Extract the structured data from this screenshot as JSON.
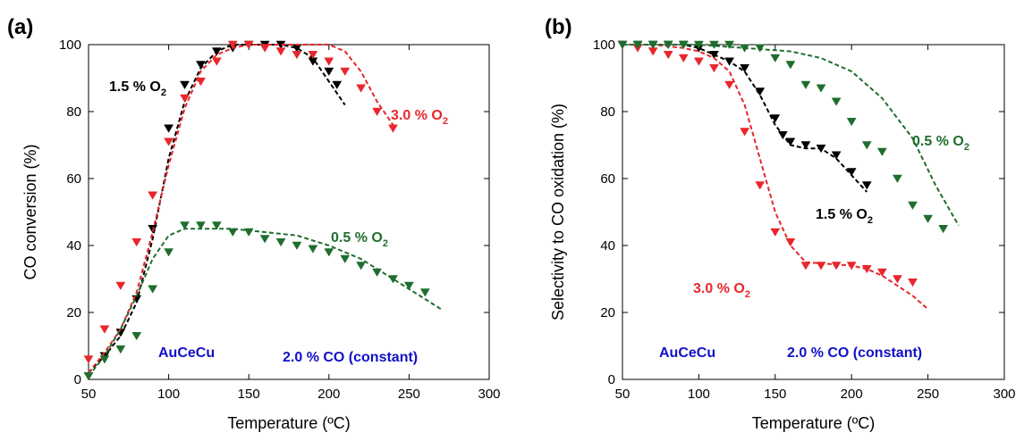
{
  "chart_data": [
    {
      "panel": "(a)",
      "type": "scatter",
      "xlabel": "Temperature (ºC)",
      "ylabel": "CO conversion (%)",
      "xlim": [
        50,
        300
      ],
      "ylim": [
        0,
        100
      ],
      "xticks": [
        "50",
        "100",
        "150",
        "200",
        "250",
        "300"
      ],
      "yticks": [
        "0",
        "20",
        "40",
        "60",
        "80",
        "100"
      ],
      "grid": false,
      "annotations": [
        {
          "text": "1.5 % O",
          "sub": "2",
          "color": "#000000"
        },
        {
          "text": "3.0 % O",
          "sub": "2",
          "color": "#e8262b"
        },
        {
          "text": "0.5 % O",
          "sub": "2",
          "color": "#1f6e2f"
        },
        {
          "text": "AuCeCu",
          "color": "#1010c8"
        },
        {
          "text": "2.0 % CO (constant)",
          "color": "#1010c8"
        }
      ],
      "series": [
        {
          "color": "#000000",
          "points": [
            [
              50,
              1
            ],
            [
              60,
              7
            ],
            [
              70,
              14
            ],
            [
              80,
              24
            ],
            [
              90,
              45
            ],
            [
              100,
              75
            ],
            [
              110,
              88
            ],
            [
              120,
              94
            ],
            [
              130,
              98
            ],
            [
              140,
              99
            ],
            [
              150,
              100
            ],
            [
              160,
              100
            ],
            [
              170,
              100
            ],
            [
              180,
              99
            ],
            [
              190,
              95
            ],
            [
              200,
              92
            ],
            [
              205,
              88
            ]
          ],
          "fit": [
            [
              50,
              2
            ],
            [
              60,
              7
            ],
            [
              70,
              13
            ],
            [
              80,
              23
            ],
            [
              90,
              42
            ],
            [
              100,
              66
            ],
            [
              110,
              83
            ],
            [
              120,
              93
            ],
            [
              130,
              98
            ],
            [
              140,
              100
            ],
            [
              150,
              100
            ],
            [
              160,
              100
            ],
            [
              170,
              100
            ],
            [
              180,
              99
            ],
            [
              190,
              96
            ],
            [
              200,
              89
            ],
            [
              210,
              82
            ]
          ]
        },
        {
          "color": "#e8262b",
          "points": [
            [
              50,
              6
            ],
            [
              60,
              15
            ],
            [
              70,
              28
            ],
            [
              80,
              41
            ],
            [
              90,
              55
            ],
            [
              100,
              71
            ],
            [
              110,
              84
            ],
            [
              120,
              89
            ],
            [
              130,
              95
            ],
            [
              140,
              100
            ],
            [
              150,
              100
            ],
            [
              160,
              99
            ],
            [
              170,
              98
            ],
            [
              180,
              97
            ],
            [
              190,
              97
            ],
            [
              200,
              95
            ],
            [
              210,
              92
            ],
            [
              220,
              87
            ],
            [
              230,
              80
            ],
            [
              240,
              75
            ]
          ],
          "fit": [
            [
              50,
              2
            ],
            [
              60,
              8
            ],
            [
              70,
              15
            ],
            [
              80,
              26
            ],
            [
              90,
              44
            ],
            [
              100,
              64
            ],
            [
              110,
              81
            ],
            [
              120,
              92
            ],
            [
              130,
              97
            ],
            [
              140,
              99
            ],
            [
              150,
              100
            ],
            [
              170,
              100
            ],
            [
              190,
              100
            ],
            [
              200,
              100
            ],
            [
              210,
              98
            ],
            [
              220,
              92
            ],
            [
              230,
              83
            ],
            [
              240,
              76
            ]
          ]
        },
        {
          "color": "#1f6e2f",
          "points": [
            [
              50,
              1
            ],
            [
              60,
              6
            ],
            [
              70,
              9
            ],
            [
              80,
              13
            ],
            [
              90,
              27
            ],
            [
              100,
              38
            ],
            [
              110,
              46
            ],
            [
              120,
              46
            ],
            [
              130,
              46
            ],
            [
              140,
              44
            ],
            [
              150,
              44
            ],
            [
              160,
              42
            ],
            [
              170,
              41
            ],
            [
              180,
              40
            ],
            [
              190,
              39
            ],
            [
              200,
              38
            ],
            [
              210,
              36
            ],
            [
              220,
              34
            ],
            [
              230,
              32
            ],
            [
              240,
              30
            ],
            [
              250,
              28
            ],
            [
              260,
              26
            ]
          ],
          "fit": [
            [
              50,
              1
            ],
            [
              60,
              7
            ],
            [
              70,
              15
            ],
            [
              80,
              25
            ],
            [
              90,
              36
            ],
            [
              100,
              43
            ],
            [
              110,
              45
            ],
            [
              120,
              45
            ],
            [
              140,
              45
            ],
            [
              160,
              44
            ],
            [
              180,
              43
            ],
            [
              200,
              40
            ],
            [
              220,
              36
            ],
            [
              240,
              30
            ],
            [
              260,
              24
            ],
            [
              270,
              21
            ]
          ]
        }
      ]
    },
    {
      "panel": "(b)",
      "type": "scatter",
      "xlabel": "Temperature (ºC)",
      "ylabel": "Selectivity to CO oxidation (%)",
      "xlim": [
        50,
        300
      ],
      "ylim": [
        0,
        100
      ],
      "xticks": [
        "50",
        "100",
        "150",
        "200",
        "250",
        "300"
      ],
      "yticks": [
        "0",
        "20",
        "40",
        "60",
        "80",
        "100"
      ],
      "grid": false,
      "annotations": [
        {
          "text": "0.5 % O",
          "sub": "2",
          "color": "#1f6e2f"
        },
        {
          "text": "1.5 % O",
          "sub": "2",
          "color": "#000000"
        },
        {
          "text": "3.0 % O",
          "sub": "2",
          "color": "#e8262b"
        },
        {
          "text": "AuCeCu",
          "color": "#1010c8"
        },
        {
          "text": "2.0 % CO (constant)",
          "color": "#1010c8"
        }
      ],
      "series": [
        {
          "color": "#000000",
          "points": [
            [
              50,
              100
            ],
            [
              60,
              100
            ],
            [
              70,
              100
            ],
            [
              80,
              100
            ],
            [
              90,
              100
            ],
            [
              100,
              99
            ],
            [
              110,
              97
            ],
            [
              120,
              95
            ],
            [
              130,
              93
            ],
            [
              140,
              86
            ],
            [
              150,
              78
            ],
            [
              155,
              73
            ],
            [
              160,
              71
            ],
            [
              170,
              70
            ],
            [
              180,
              69
            ],
            [
              190,
              67
            ],
            [
              200,
              62
            ],
            [
              210,
              58
            ]
          ],
          "fit": [
            [
              50,
              100
            ],
            [
              70,
              100
            ],
            [
              90,
              100
            ],
            [
              100,
              99
            ],
            [
              110,
              97
            ],
            [
              120,
              95
            ],
            [
              130,
              92
            ],
            [
              140,
              85
            ],
            [
              150,
              76
            ],
            [
              160,
              70
            ],
            [
              170,
              69
            ],
            [
              180,
              69
            ],
            [
              190,
              66
            ],
            [
              200,
              61
            ],
            [
              210,
              56
            ]
          ]
        },
        {
          "color": "#e8262b",
          "points": [
            [
              50,
              100
            ],
            [
              60,
              99
            ],
            [
              70,
              98
            ],
            [
              80,
              97
            ],
            [
              90,
              96
            ],
            [
              100,
              95
            ],
            [
              110,
              93
            ],
            [
              120,
              88
            ],
            [
              130,
              74
            ],
            [
              140,
              58
            ],
            [
              150,
              44
            ],
            [
              160,
              41
            ],
            [
              170,
              34
            ],
            [
              180,
              34
            ],
            [
              190,
              34
            ],
            [
              200,
              34
            ],
            [
              210,
              33
            ],
            [
              220,
              32
            ],
            [
              230,
              30
            ],
            [
              240,
              29
            ]
          ],
          "fit": [
            [
              50,
              100
            ],
            [
              70,
              100
            ],
            [
              90,
              99
            ],
            [
              100,
              98
            ],
            [
              110,
              96
            ],
            [
              120,
              92
            ],
            [
              130,
              82
            ],
            [
              140,
              66
            ],
            [
              150,
              50
            ],
            [
              160,
              40
            ],
            [
              170,
              35
            ],
            [
              200,
              34
            ],
            [
              210,
              33
            ],
            [
              220,
              31
            ],
            [
              230,
              28
            ],
            [
              240,
              25
            ],
            [
              250,
              21
            ]
          ]
        },
        {
          "color": "#1f6e2f",
          "points": [
            [
              50,
              100
            ],
            [
              60,
              100
            ],
            [
              70,
              100
            ],
            [
              80,
              100
            ],
            [
              90,
              100
            ],
            [
              100,
              100
            ],
            [
              110,
              100
            ],
            [
              120,
              100
            ],
            [
              130,
              99
            ],
            [
              140,
              99
            ],
            [
              150,
              96
            ],
            [
              160,
              94
            ],
            [
              170,
              88
            ],
            [
              180,
              87
            ],
            [
              190,
              83
            ],
            [
              200,
              77
            ],
            [
              210,
              70
            ],
            [
              220,
              68
            ],
            [
              230,
              60
            ],
            [
              240,
              52
            ],
            [
              250,
              48
            ],
            [
              260,
              45
            ]
          ],
          "fit": [
            [
              50,
              100
            ],
            [
              100,
              100
            ],
            [
              130,
              99
            ],
            [
              160,
              98
            ],
            [
              180,
              96
            ],
            [
              200,
              92
            ],
            [
              220,
              84
            ],
            [
              240,
              72
            ],
            [
              255,
              58
            ],
            [
              270,
              46
            ]
          ]
        }
      ]
    }
  ]
}
